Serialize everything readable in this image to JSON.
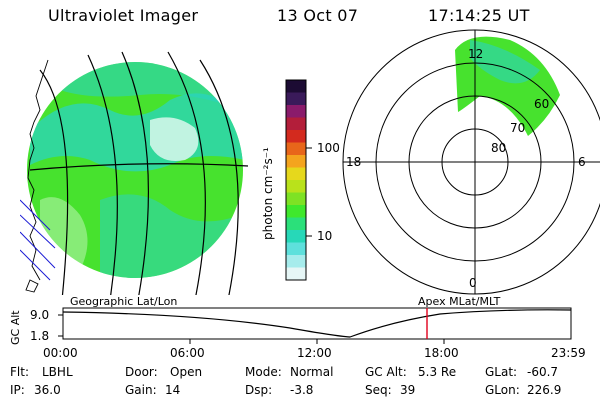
{
  "header": {
    "instrument": "Ultraviolet Imager",
    "date": "13 Oct 07",
    "time": "17:14:25 UT"
  },
  "colorbar": {
    "unit_label": "photon cm⁻²s⁻¹",
    "ticks": [
      "100",
      "10"
    ],
    "colors": [
      "#1c0b33",
      "#3a1a5a",
      "#8a1b6b",
      "#b31e3a",
      "#d32a1e",
      "#e8661a",
      "#f4a41e",
      "#e6d81c",
      "#b9e21b",
      "#7ee224",
      "#3fe82c",
      "#2be07a",
      "#27d8b8",
      "#5ee0dc",
      "#a6ecec",
      "#e6f6f6"
    ]
  },
  "left_map": {
    "name": "Geographic Lat/Lon",
    "primary_color": "#47e22e",
    "secondary_color": "#2ad4c0"
  },
  "polar_plot": {
    "name": "Apex MLat/MLT",
    "mlt_labels": {
      "top": "12",
      "left": "18",
      "right": "6",
      "bottom": "0"
    },
    "lat_labels": [
      "60",
      "70",
      "80"
    ]
  },
  "timeline": {
    "axis_label": "GC Alt",
    "y_ticks": [
      "9.0",
      "1.8"
    ],
    "x_ticks": [
      "00:00",
      "06:00",
      "12:00",
      "18:00",
      "23:59"
    ],
    "cursor_color": "#e0001c"
  },
  "status": {
    "flt_label": "Flt:",
    "flt_value": "LBHL",
    "ip_label": "IP:",
    "ip_value": "36.0",
    "door_label": "Door:",
    "door_value": "Open",
    "gain_label": "Gain:",
    "gain_value": "14",
    "mode_label": "Mode:",
    "mode_value": "Normal",
    "dsp_label": "Dsp:",
    "dsp_value": "-3.8",
    "gcalt_label": "GC Alt:",
    "gcalt_value": "5.3 Re",
    "seq_label": "Seq:",
    "seq_value": "39",
    "glat_label": "GLat:",
    "glat_value": "-60.7",
    "glon_label": "GLon:",
    "glon_value": "226.9"
  }
}
